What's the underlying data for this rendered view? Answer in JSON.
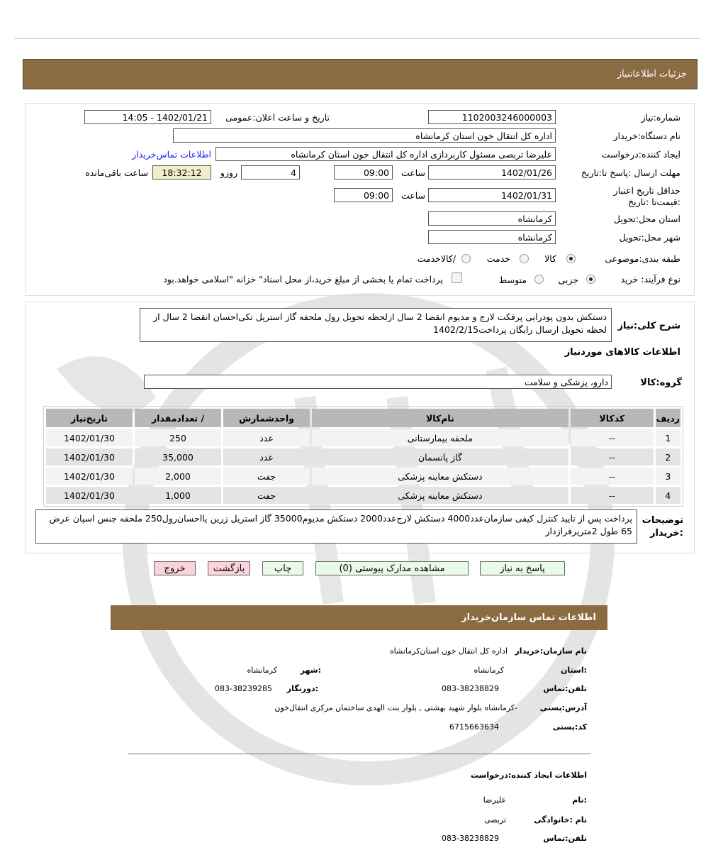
{
  "header": {
    "title": "جزئیات   اطلاعاتنیاز"
  },
  "form": {
    "need_number_label": "شماره:نیاز",
    "need_number": "1102003246000003",
    "announce_label": "تاریخ و ساعت اعلان:عمومی",
    "announce_value": "1402/01/21 - 14:05",
    "buyer_label": "نام دستگاه:خریدار",
    "buyer_value": "اداره کل انتقال خون استان کرمانشاه",
    "creator_label": "ایجاد کننده:درخواست",
    "creator_value": "علیرضا تربصی مسئول کاربردازی اداره کل انتقال خون استان کرمانشاه",
    "contact_link": "اطلاعات تماس‌خریدار",
    "deadline_label": "مهلت ارسال :پاسخ تا:تاریخ",
    "deadline_date": "1402/01/26",
    "time_label": "ساعت",
    "deadline_time": "09:00",
    "days": "4",
    "days_label": "روزو",
    "remaining": "18:32:12",
    "remaining_label": "ساعت باقی‌مانده",
    "validity_label": "حداقل تاریخ اعتبار :قیمت‌تا :تاریخ",
    "validity_date": "1402/01/31",
    "validity_time": "09:00",
    "province_label": "استان محل:تحویل",
    "province": "کرمانشاه",
    "city_label": "شهر محل:تحویل",
    "city": "کرمانشاه",
    "category_label": "طبقه بندی:موضوعی",
    "category_options": [
      "کالا",
      "خدمت",
      "/کالاخدمت"
    ],
    "category_selected": "کالا",
    "process_label": "نوع فرآیند: خرید",
    "process_options": [
      "جزیی",
      "متوسط"
    ],
    "process_selected": "جزیی",
    "treasury_note": "پرداخت تمام یا بخشی از مبلغ خرید،از محل اسناد\" خزانه \"اسلامی خواهد.بود",
    "treasury_checked": false
  },
  "details": {
    "summary_label": "شرح کلی:نیاز",
    "summary": "دستکش بدون پودرایی پرفکت لارج و مدیوم انقضا 2 سال ازلحظه تحویل رول ملحفه گاز استریل تکی‌احسان انقضا 2 سال از لحظه تحویل ارسال رایگان پرداخت1402/2/15",
    "goods_title": "اطلاعات کالاهای موردنیاز",
    "group_label": "گروه:کالا",
    "group_value": "دارو، پزشکی و سلامت",
    "table": {
      "headers": [
        "ردیف",
        "کدکالا",
        "نام‌کالا",
        "واحدشمارش",
        "/ تعدادمقدار",
        "تاریخ‌نیاز"
      ],
      "rows": [
        [
          "1",
          "--",
          "ملحفه بیمارستانی",
          "عدد",
          "250",
          "1402/01/30"
        ],
        [
          "2",
          "--",
          "گاز پانسمان",
          "عدد",
          "35,000",
          "1402/01/30"
        ],
        [
          "3",
          "--",
          "دستکش معاینه پزشکی",
          "جفت",
          "2,000",
          "1402/01/30"
        ],
        [
          "4",
          "--",
          "دستکش معاینه پزشکی",
          "جفت",
          "1,000",
          "1402/01/30"
        ]
      ]
    },
    "notes_label": "توضیحات :خریدار",
    "notes": "پرداخت پس از تایید کنترل کیفی سازمان‌عدد4000 دستکش لارج‌عدد2000 دستکش مدیوم35000 گاز استریل زرین یااحسان‌رول250 ملحفه جنس اسپان عرض 65 طول 2متریرفرازدار"
  },
  "buttons": {
    "reply": "پاسخ به نیاز",
    "attachments": "مشاهده مدارک پیوستی (0)",
    "print": "چاپ",
    "back": "بازگشت",
    "exit": "خروج"
  },
  "contact": {
    "title": "اطلاعات  تماس سازمان‌خریدار",
    "org_label": "نام سازمان:خریدار",
    "org": "اداره کل انتقال خون استان‌کرمانشاه",
    "province_label": ":استان",
    "province": "کرمانشاه",
    "city_label": ":شهر",
    "city": "کرمانشاه",
    "phone_label": "تلفن:تماس",
    "phone": "083-38238829",
    "fax_label": ":دورنگار",
    "fax": "083-38239285",
    "address_label": "آدرس:پستی",
    "address": "-کرمانشاه بلوار شهید بهشتی , بلوار بنت الهدی ساختمان مرکزی انتقال‌خون",
    "postal_label": "کد:پستی",
    "postal": "6715663634",
    "creator_title": "اطلاعات  ایجاد کننده:درخواست",
    "name_label": ":نام",
    "name": "علیرضا",
    "family_label": "نام :خانوادگی",
    "family": "تربصی",
    "cphone_label": "تلفن:تماس",
    "cphone": "083-38238829"
  }
}
